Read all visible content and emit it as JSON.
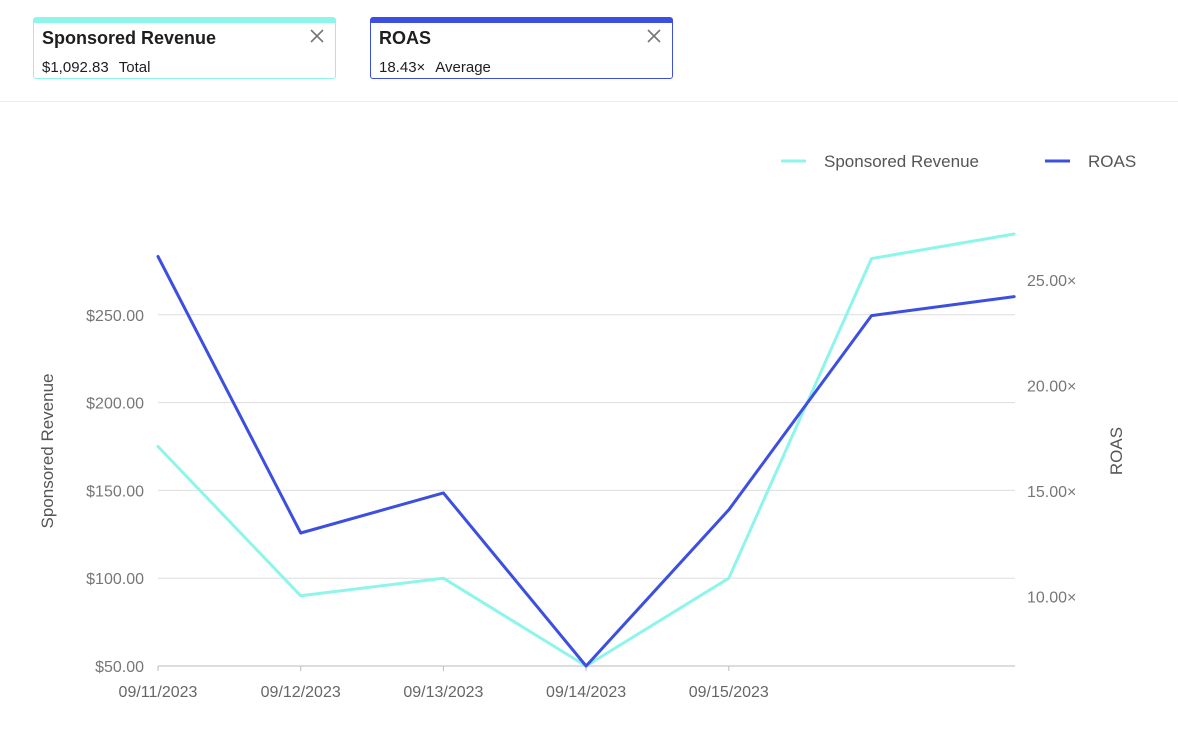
{
  "cards": [
    {
      "title": "Sponsored Revenue",
      "value": "$1,092.83",
      "sub": "Total",
      "color": "#8ef5ea"
    },
    {
      "title": "ROAS",
      "value": "18.43×",
      "sub": "Average",
      "color": "#3d4fe0"
    }
  ],
  "chart_data": {
    "type": "line",
    "x": [
      "09/11/2023",
      "09/12/2023",
      "09/13/2023",
      "09/14/2023",
      "09/15/2023",
      "",
      ""
    ],
    "xtick_labels": [
      "09/11/2023",
      "09/12/2023",
      "09/13/2023",
      "09/14/2023",
      "09/15/2023"
    ],
    "series": [
      {
        "name": "Sponsored Revenue",
        "axis": "left",
        "color": "#8ef5ea",
        "values": [
          175,
          90,
          100,
          50,
          100,
          282,
          296
        ]
      },
      {
        "name": "ROAS",
        "axis": "right",
        "color": "#3d4fe0",
        "values": [
          26.1,
          13.0,
          14.9,
          6.7,
          14.1,
          23.3,
          24.2
        ]
      }
    ],
    "ylabel_left": "Sponsored Revenue",
    "ylabel_right": "ROAS",
    "ylim_left": [
      50,
      300
    ],
    "ylim_right": [
      6.7,
      27.5
    ],
    "yticks_left": [
      "$50.00",
      "$100.00",
      "$150.00",
      "$200.00",
      "$250.00"
    ],
    "yticks_left_values": [
      50,
      100,
      150,
      200,
      250
    ],
    "yticks_right": [
      "10.00×",
      "15.00×",
      "20.00×",
      "25.00×"
    ],
    "yticks_right_values": [
      10,
      15,
      20,
      25
    ],
    "legend": [
      "Sponsored Revenue",
      "ROAS"
    ],
    "legend_position": "top-right",
    "grid": true
  }
}
